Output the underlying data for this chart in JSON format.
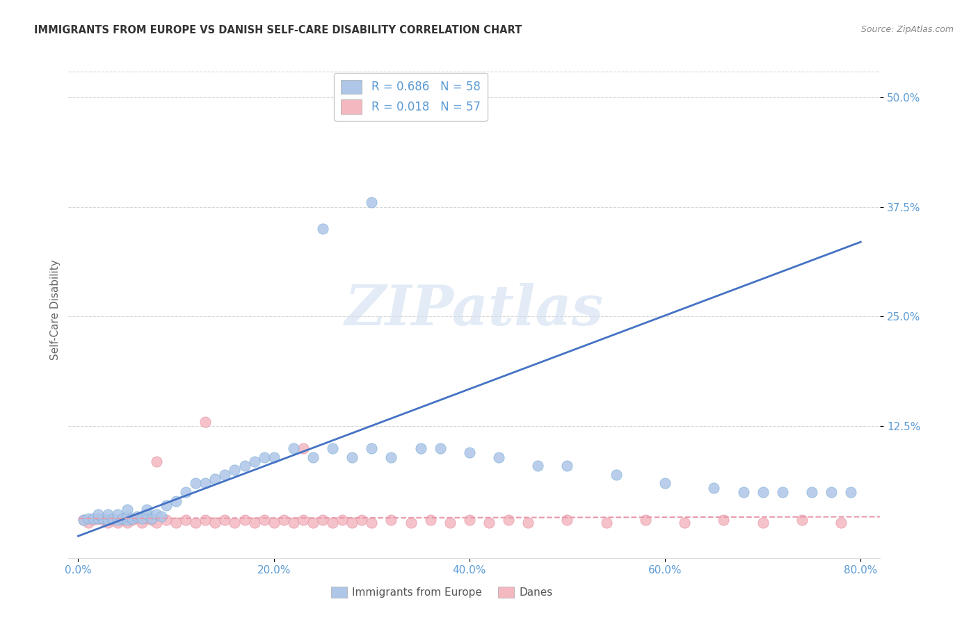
{
  "title": "IMMIGRANTS FROM EUROPE VS DANISH SELF-CARE DISABILITY CORRELATION CHART",
  "source": "Source: ZipAtlas.com",
  "ylabel": "Self-Care Disability",
  "xlim": [
    -0.01,
    0.82
  ],
  "ylim": [
    -0.025,
    0.54
  ],
  "xticks": [
    0.0,
    0.2,
    0.4,
    0.6,
    0.8
  ],
  "xtick_labels": [
    "0.0%",
    "20.0%",
    "40.0%",
    "60.0%",
    "80.0%"
  ],
  "ytick_labels": [
    "12.5%",
    "25.0%",
    "37.5%",
    "50.0%"
  ],
  "ytick_values": [
    0.125,
    0.25,
    0.375,
    0.5
  ],
  "legend_R1": "0.686",
  "legend_N1": "58",
  "legend_R2": "0.018",
  "legend_N2": "57",
  "blue_scatter_x": [
    0.005,
    0.01,
    0.015,
    0.02,
    0.025,
    0.02,
    0.03,
    0.03,
    0.035,
    0.04,
    0.04,
    0.045,
    0.05,
    0.05,
    0.055,
    0.05,
    0.06,
    0.065,
    0.07,
    0.07,
    0.075,
    0.08,
    0.085,
    0.09,
    0.1,
    0.11,
    0.12,
    0.13,
    0.14,
    0.15,
    0.16,
    0.17,
    0.18,
    0.19,
    0.2,
    0.22,
    0.24,
    0.26,
    0.28,
    0.3,
    0.32,
    0.35,
    0.37,
    0.4,
    0.43,
    0.47,
    0.5,
    0.55,
    0.6,
    0.65,
    0.68,
    0.7,
    0.72,
    0.75,
    0.77,
    0.79,
    0.3,
    0.25
  ],
  "blue_scatter_y": [
    0.018,
    0.02,
    0.02,
    0.02,
    0.02,
    0.025,
    0.018,
    0.025,
    0.02,
    0.018,
    0.025,
    0.02,
    0.018,
    0.022,
    0.02,
    0.03,
    0.022,
    0.02,
    0.025,
    0.03,
    0.02,
    0.025,
    0.022,
    0.035,
    0.04,
    0.05,
    0.06,
    0.06,
    0.065,
    0.07,
    0.075,
    0.08,
    0.085,
    0.09,
    0.09,
    0.1,
    0.09,
    0.1,
    0.09,
    0.1,
    0.09,
    0.1,
    0.1,
    0.095,
    0.09,
    0.08,
    0.08,
    0.07,
    0.06,
    0.055,
    0.05,
    0.05,
    0.05,
    0.05,
    0.05,
    0.05,
    0.38,
    0.35
  ],
  "pink_scatter_x": [
    0.005,
    0.01,
    0.015,
    0.02,
    0.025,
    0.03,
    0.035,
    0.04,
    0.045,
    0.05,
    0.055,
    0.06,
    0.065,
    0.07,
    0.075,
    0.08,
    0.09,
    0.1,
    0.11,
    0.12,
    0.13,
    0.14,
    0.15,
    0.16,
    0.17,
    0.18,
    0.19,
    0.2,
    0.21,
    0.22,
    0.23,
    0.24,
    0.25,
    0.26,
    0.27,
    0.28,
    0.29,
    0.3,
    0.32,
    0.34,
    0.36,
    0.38,
    0.4,
    0.42,
    0.44,
    0.46,
    0.5,
    0.54,
    0.58,
    0.62,
    0.66,
    0.7,
    0.74,
    0.78,
    0.23,
    0.13,
    0.08
  ],
  "pink_scatter_y": [
    0.018,
    0.015,
    0.018,
    0.02,
    0.018,
    0.015,
    0.018,
    0.015,
    0.018,
    0.015,
    0.018,
    0.02,
    0.015,
    0.02,
    0.018,
    0.015,
    0.018,
    0.015,
    0.018,
    0.015,
    0.018,
    0.015,
    0.018,
    0.015,
    0.018,
    0.015,
    0.018,
    0.015,
    0.018,
    0.015,
    0.018,
    0.015,
    0.018,
    0.015,
    0.018,
    0.015,
    0.018,
    0.015,
    0.018,
    0.015,
    0.018,
    0.015,
    0.018,
    0.015,
    0.018,
    0.015,
    0.018,
    0.015,
    0.018,
    0.015,
    0.018,
    0.015,
    0.018,
    0.015,
    0.1,
    0.13,
    0.085
  ],
  "blue_line_x0": 0.0,
  "blue_line_x1": 0.8,
  "blue_line_y0": 0.0,
  "blue_line_y1": 0.335,
  "pink_line_x0": 0.0,
  "pink_line_x1": 0.82,
  "pink_line_y0": 0.02,
  "pink_line_y1": 0.022,
  "watermark_text": "ZIPatlas",
  "scatter_size": 120,
  "background_color": "#ffffff",
  "title_color": "#333333",
  "axis_color": "#5b9bd5",
  "grid_color": "#cccccc",
  "blue_scatter_color": "#aec6e8",
  "blue_scatter_edge": "#7aadd4",
  "blue_line_color": "#4472c4",
  "pink_scatter_color": "#f4b8c1",
  "pink_scatter_edge": "#e090a0",
  "pink_line_color": "#e899aa",
  "watermark_color": "#d0dff0",
  "source_color": "#888888"
}
